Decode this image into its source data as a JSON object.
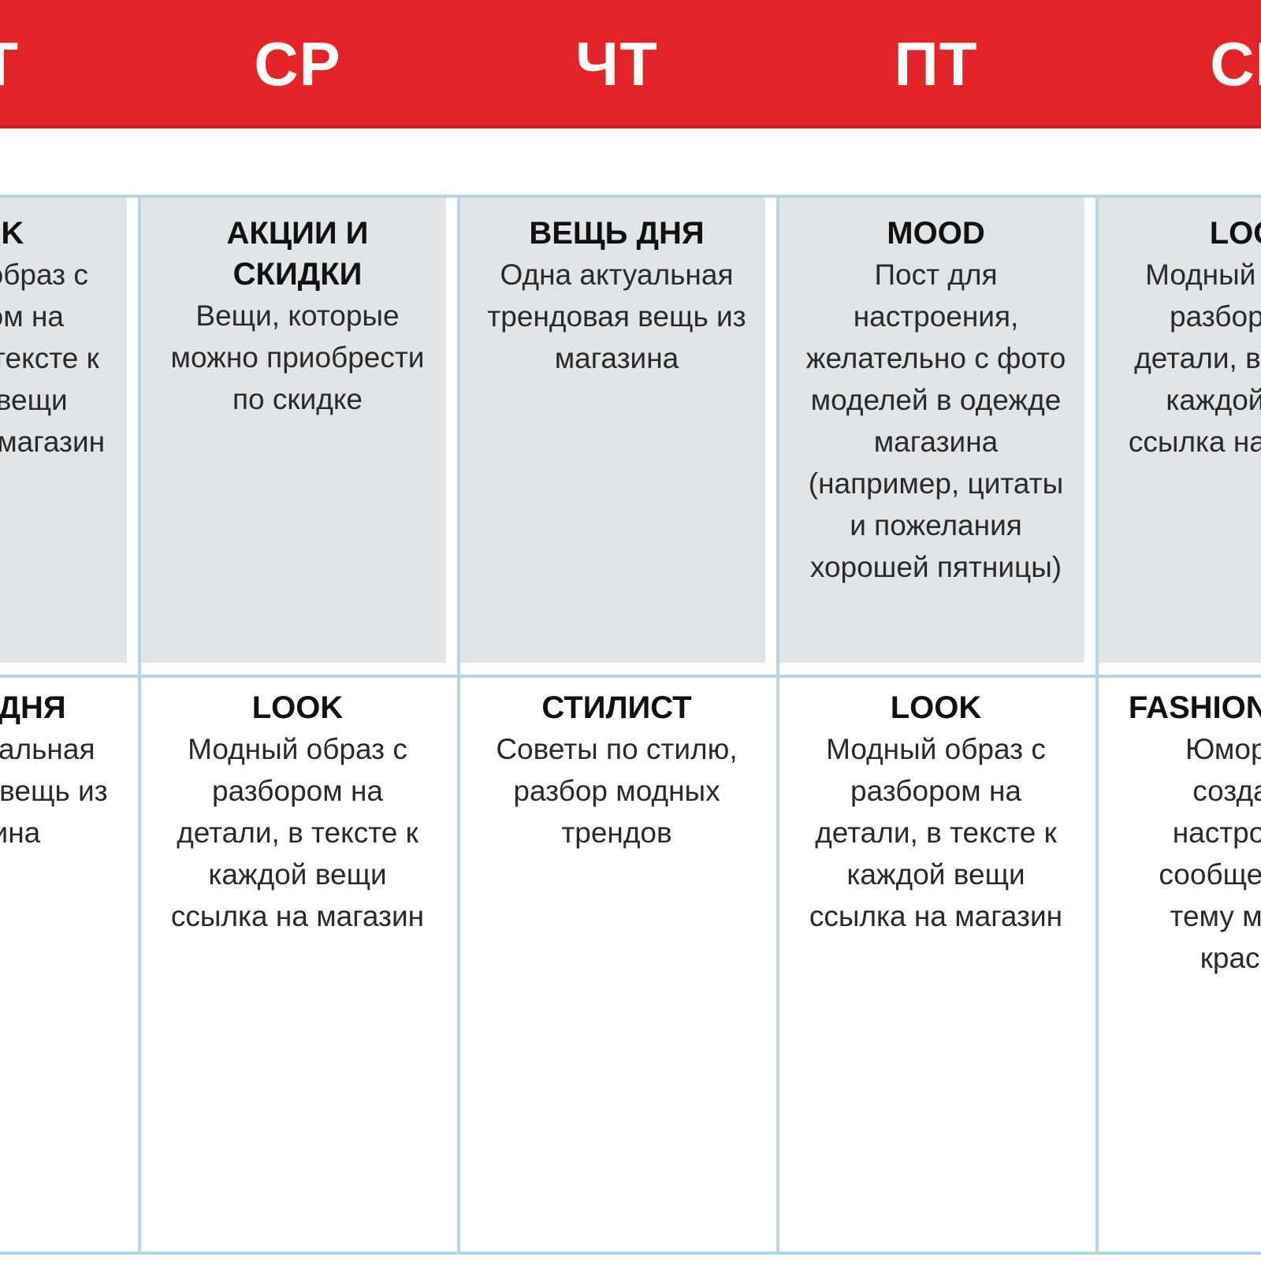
{
  "header": {
    "days": [
      "ВТ",
      "СР",
      "ЧТ",
      "ПТ",
      "СБ"
    ]
  },
  "grid": {
    "columns": [
      {
        "day": "ВТ",
        "row1": {
          "title": "LOOK",
          "body": "Модный образ с\nразбором на\nдетали, в тексте к\nкаждой вещи\nссылка на магазин"
        },
        "row2": {
          "title": "ВЕЩЬ ДНЯ",
          "body": "Одна актуальная\nтрендовая вещь из\nмагазина"
        }
      },
      {
        "day": "СР",
        "row1": {
          "title": "АКЦИИ И\nСКИДКИ",
          "body": "Вещи, которые\nможно приобрести\nпо скидке"
        },
        "row2": {
          "title": "LOOK",
          "body": "Модный образ с\nразбором на\nдетали, в тексте к\nкаждой вещи\nссылка на магазин"
        }
      },
      {
        "day": "ЧТ",
        "row1": {
          "title": "ВЕЩЬ ДНЯ",
          "body": "Одна актуальная\nтрендовая вещь из\nмагазина"
        },
        "row2": {
          "title": "СТИЛИСТ",
          "body": "Советы по стилю,\nразбор модных\nтрендов"
        }
      },
      {
        "day": "ПТ",
        "row1": {
          "title": "MOOD",
          "body": "Пост для\nнастроения,\nжелательно с фото\nмоделей в одежде\nмагазина\n(например, цитаты\nи пожелания\nхорошей пятницы)"
        },
        "row2": {
          "title": "LOOK",
          "body": "Модный образ с\nразбором на\nдетали, в тексте к\nкаждой вещи\nссылка на магазин"
        }
      },
      {
        "day": "СБ",
        "row1": {
          "title": "LOOK",
          "body": "Модный образ с\nразбором на\nдетали, в тексте к\nкаждой вещи\nссылка на магазин"
        },
        "row2": {
          "title": "FASHION ЮМОР",
          "body": "Юмор для\nсоздания\nнастроения,\nсообщения на\nтему моды и\nкрасоты"
        }
      }
    ]
  },
  "colors": {
    "header-red": "#e32529",
    "header-red-dark": "#c52025",
    "cell-gray": "#e2e5e8",
    "grid-blue": "#b9d5e3",
    "title-color": "#111111",
    "body-color": "#2a2a2a"
  }
}
